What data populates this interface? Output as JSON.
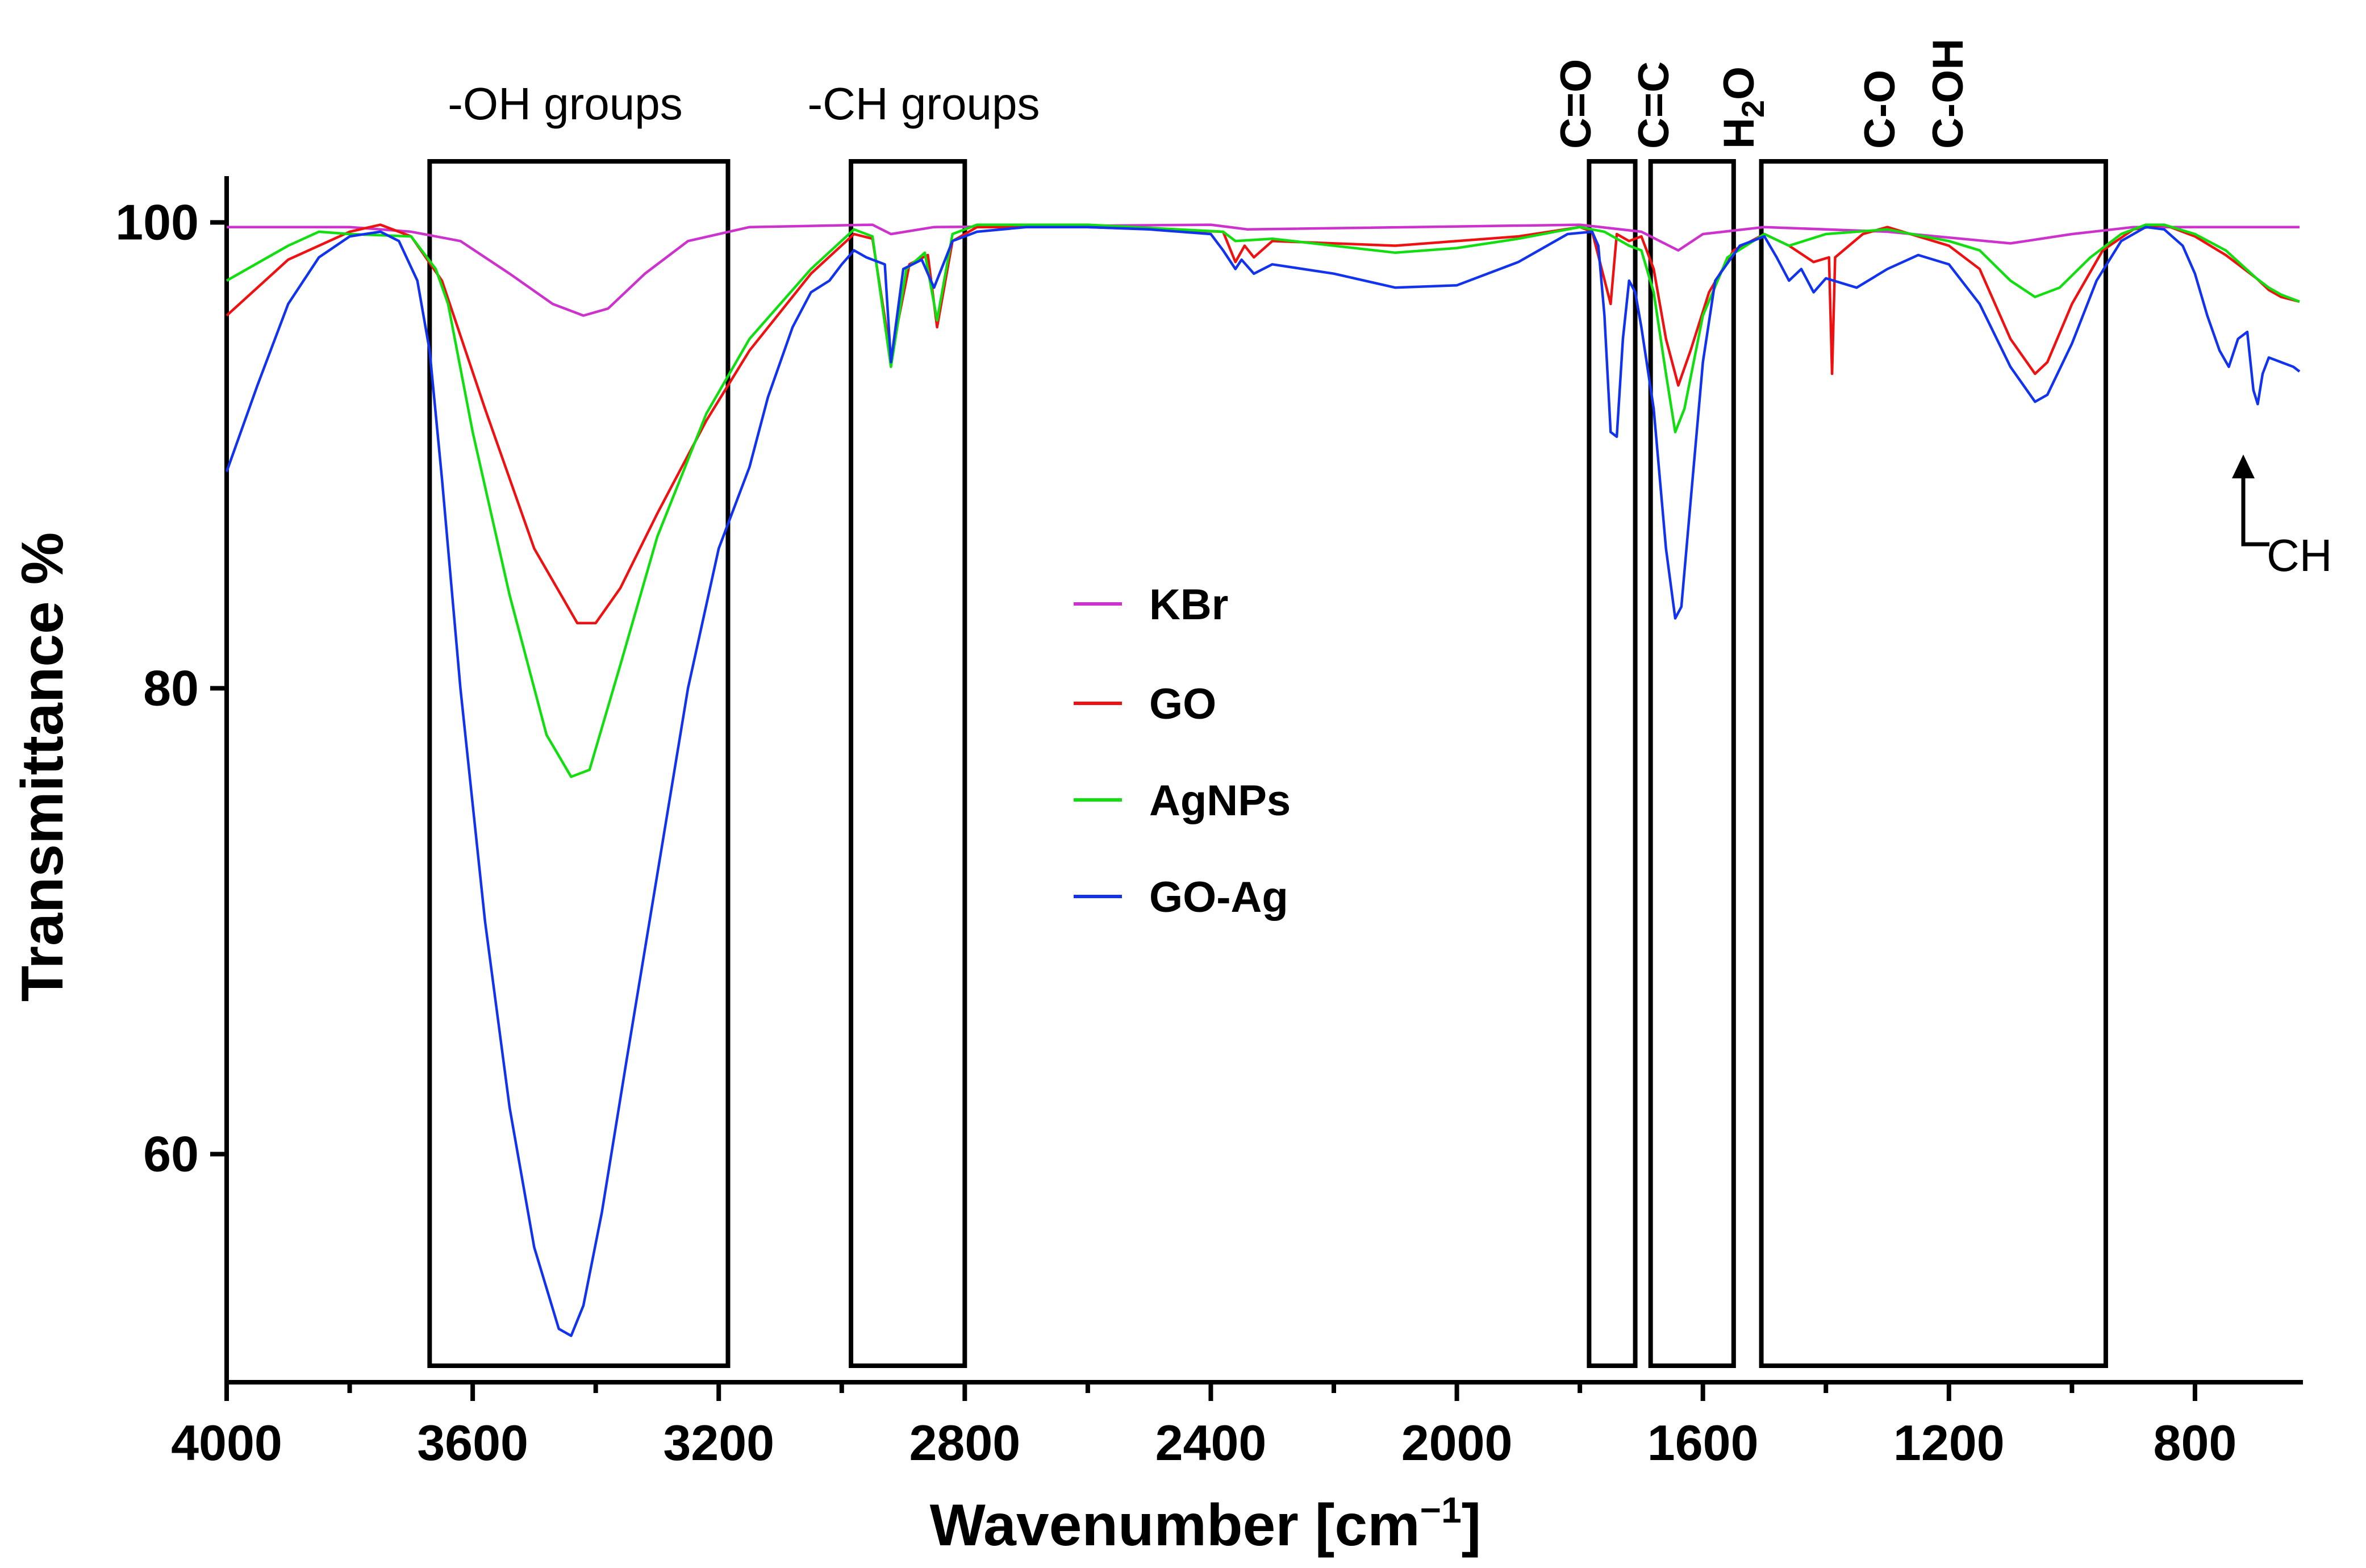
{
  "chart_data": {
    "type": "line",
    "title": "",
    "xlabel": "Wavenumber [cm",
    "xlabel_sup": "−1",
    "xlabel_close": "]",
    "ylabel": "Transmittance %",
    "xlim": [
      4000,
      630
    ],
    "ylim": [
      50,
      102
    ],
    "x_ticks": [
      4000,
      3600,
      3200,
      2800,
      2400,
      2000,
      1600,
      1200,
      800
    ],
    "x_minor_ticks": [
      3800,
      3400,
      3000,
      2600,
      2200,
      1800,
      1400,
      1000
    ],
    "y_ticks": [
      60,
      80,
      100
    ],
    "legend": [
      "KBr",
      "GO",
      "AgNPs",
      "GO-Ag"
    ],
    "series": [
      {
        "name": "KBr",
        "color": "#cc33cc",
        "points": [
          [
            4000,
            99.8
          ],
          [
            3800,
            99.8
          ],
          [
            3700,
            99.6
          ],
          [
            3620,
            99.2
          ],
          [
            3540,
            97.8
          ],
          [
            3470,
            96.5
          ],
          [
            3420,
            96.0
          ],
          [
            3380,
            96.3
          ],
          [
            3320,
            97.8
          ],
          [
            3250,
            99.2
          ],
          [
            3150,
            99.8
          ],
          [
            2950,
            99.9
          ],
          [
            2920,
            99.5
          ],
          [
            2850,
            99.8
          ],
          [
            2400,
            99.9
          ],
          [
            2340,
            99.7
          ],
          [
            1800,
            99.9
          ],
          [
            1700,
            99.6
          ],
          [
            1640,
            98.8
          ],
          [
            1600,
            99.5
          ],
          [
            1500,
            99.8
          ],
          [
            1300,
            99.6
          ],
          [
            1100,
            99.1
          ],
          [
            1000,
            99.5
          ],
          [
            900,
            99.8
          ],
          [
            630,
            99.8
          ]
        ]
      },
      {
        "name": "GO",
        "color": "#ee1111",
        "points": [
          [
            4000,
            96.0
          ],
          [
            3900,
            98.4
          ],
          [
            3800,
            99.6
          ],
          [
            3750,
            99.9
          ],
          [
            3700,
            99.4
          ],
          [
            3650,
            97.5
          ],
          [
            3580,
            92.0
          ],
          [
            3500,
            86.0
          ],
          [
            3430,
            82.8
          ],
          [
            3400,
            82.8
          ],
          [
            3360,
            84.3
          ],
          [
            3300,
            87.5
          ],
          [
            3220,
            91.5
          ],
          [
            3150,
            94.5
          ],
          [
            3050,
            97.8
          ],
          [
            2980,
            99.5
          ],
          [
            2950,
            99.3
          ],
          [
            2920,
            94.2
          ],
          [
            2890,
            98.2
          ],
          [
            2860,
            98.6
          ],
          [
            2845,
            95.5
          ],
          [
            2820,
            99.2
          ],
          [
            2780,
            99.8
          ],
          [
            2600,
            99.8
          ],
          [
            2380,
            99.6
          ],
          [
            2360,
            98.3
          ],
          [
            2345,
            99.0
          ],
          [
            2330,
            98.5
          ],
          [
            2300,
            99.2
          ],
          [
            2100,
            99.0
          ],
          [
            1900,
            99.4
          ],
          [
            1800,
            99.8
          ],
          [
            1780,
            99.6
          ],
          [
            1750,
            96.5
          ],
          [
            1740,
            99.5
          ],
          [
            1720,
            99.2
          ],
          [
            1700,
            99.4
          ],
          [
            1680,
            98.0
          ],
          [
            1660,
            95.0
          ],
          [
            1640,
            93.0
          ],
          [
            1620,
            94.5
          ],
          [
            1590,
            97.0
          ],
          [
            1550,
            98.8
          ],
          [
            1500,
            99.5
          ],
          [
            1460,
            99.0
          ],
          [
            1420,
            98.3
          ],
          [
            1395,
            98.5
          ],
          [
            1390,
            93.5
          ],
          [
            1385,
            98.5
          ],
          [
            1340,
            99.5
          ],
          [
            1300,
            99.8
          ],
          [
            1250,
            99.4
          ],
          [
            1200,
            99.0
          ],
          [
            1150,
            98.0
          ],
          [
            1100,
            95.0
          ],
          [
            1060,
            93.5
          ],
          [
            1040,
            94.0
          ],
          [
            1000,
            96.5
          ],
          [
            950,
            98.8
          ],
          [
            900,
            99.7
          ],
          [
            850,
            99.9
          ],
          [
            800,
            99.4
          ],
          [
            750,
            98.6
          ],
          [
            700,
            97.6
          ],
          [
            680,
            97.1
          ],
          [
            660,
            96.8
          ],
          [
            630,
            96.6
          ]
        ]
      },
      {
        "name": "AgNPs",
        "color": "#11dd11",
        "points": [
          [
            4000,
            97.5
          ],
          [
            3900,
            99.0
          ],
          [
            3850,
            99.6
          ],
          [
            3800,
            99.5
          ],
          [
            3700,
            99.4
          ],
          [
            3660,
            98.0
          ],
          [
            3640,
            96.5
          ],
          [
            3600,
            91.0
          ],
          [
            3540,
            84.0
          ],
          [
            3480,
            78.0
          ],
          [
            3440,
            76.2
          ],
          [
            3410,
            76.5
          ],
          [
            3360,
            81.0
          ],
          [
            3300,
            86.5
          ],
          [
            3220,
            91.8
          ],
          [
            3150,
            95.0
          ],
          [
            3050,
            98.0
          ],
          [
            2980,
            99.7
          ],
          [
            2950,
            99.4
          ],
          [
            2920,
            93.8
          ],
          [
            2895,
            98.0
          ],
          [
            2865,
            98.7
          ],
          [
            2845,
            95.8
          ],
          [
            2820,
            99.5
          ],
          [
            2780,
            99.9
          ],
          [
            2600,
            99.9
          ],
          [
            2380,
            99.6
          ],
          [
            2360,
            99.2
          ],
          [
            2300,
            99.3
          ],
          [
            2200,
            99.0
          ],
          [
            2100,
            98.7
          ],
          [
            2000,
            98.9
          ],
          [
            1900,
            99.3
          ],
          [
            1800,
            99.8
          ],
          [
            1760,
            99.6
          ],
          [
            1720,
            99.0
          ],
          [
            1700,
            98.8
          ],
          [
            1680,
            97.0
          ],
          [
            1660,
            93.5
          ],
          [
            1645,
            91.0
          ],
          [
            1630,
            92.0
          ],
          [
            1600,
            96.0
          ],
          [
            1560,
            98.5
          ],
          [
            1500,
            99.5
          ],
          [
            1460,
            99.0
          ],
          [
            1400,
            99.5
          ],
          [
            1300,
            99.7
          ],
          [
            1200,
            99.2
          ],
          [
            1150,
            98.8
          ],
          [
            1100,
            97.5
          ],
          [
            1060,
            96.8
          ],
          [
            1020,
            97.2
          ],
          [
            970,
            98.5
          ],
          [
            920,
            99.5
          ],
          [
            880,
            99.9
          ],
          [
            850,
            99.9
          ],
          [
            800,
            99.5
          ],
          [
            750,
            98.8
          ],
          [
            700,
            97.6
          ],
          [
            680,
            97.2
          ],
          [
            660,
            96.9
          ],
          [
            630,
            96.6
          ]
        ]
      },
      {
        "name": "GO-Ag",
        "color": "#1133ee",
        "points": [
          [
            4000,
            89.3
          ],
          [
            3950,
            93.0
          ],
          [
            3900,
            96.5
          ],
          [
            3850,
            98.5
          ],
          [
            3800,
            99.4
          ],
          [
            3750,
            99.6
          ],
          [
            3720,
            99.2
          ],
          [
            3690,
            97.5
          ],
          [
            3670,
            94.5
          ],
          [
            3650,
            89.0
          ],
          [
            3620,
            80.0
          ],
          [
            3580,
            70.0
          ],
          [
            3540,
            62.0
          ],
          [
            3500,
            56.0
          ],
          [
            3460,
            52.5
          ],
          [
            3440,
            52.2
          ],
          [
            3420,
            53.5
          ],
          [
            3390,
            57.5
          ],
          [
            3350,
            64.0
          ],
          [
            3300,
            72.0
          ],
          [
            3250,
            80.0
          ],
          [
            3200,
            86.0
          ],
          [
            3150,
            89.5
          ],
          [
            3120,
            92.5
          ],
          [
            3080,
            95.5
          ],
          [
            3050,
            97.0
          ],
          [
            3020,
            97.5
          ],
          [
            3000,
            98.2
          ],
          [
            2980,
            98.8
          ],
          [
            2960,
            98.5
          ],
          [
            2930,
            98.2
          ],
          [
            2920,
            94.0
          ],
          [
            2900,
            98.0
          ],
          [
            2870,
            98.4
          ],
          [
            2850,
            97.2
          ],
          [
            2820,
            99.2
          ],
          [
            2780,
            99.6
          ],
          [
            2700,
            99.8
          ],
          [
            2600,
            99.8
          ],
          [
            2500,
            99.7
          ],
          [
            2400,
            99.5
          ],
          [
            2380,
            98.8
          ],
          [
            2360,
            98.0
          ],
          [
            2350,
            98.4
          ],
          [
            2330,
            97.8
          ],
          [
            2300,
            98.2
          ],
          [
            2200,
            97.8
          ],
          [
            2100,
            97.2
          ],
          [
            2000,
            97.3
          ],
          [
            1900,
            98.3
          ],
          [
            1820,
            99.5
          ],
          [
            1780,
            99.6
          ],
          [
            1770,
            99.0
          ],
          [
            1760,
            96.0
          ],
          [
            1750,
            91.0
          ],
          [
            1740,
            90.8
          ],
          [
            1730,
            95.0
          ],
          [
            1720,
            97.5
          ],
          [
            1710,
            97.0
          ],
          [
            1700,
            95.5
          ],
          [
            1680,
            92.0
          ],
          [
            1660,
            86.0
          ],
          [
            1645,
            83.0
          ],
          [
            1635,
            83.5
          ],
          [
            1620,
            88.0
          ],
          [
            1600,
            94.0
          ],
          [
            1580,
            97.5
          ],
          [
            1540,
            99.0
          ],
          [
            1500,
            99.4
          ],
          [
            1480,
            98.5
          ],
          [
            1460,
            97.5
          ],
          [
            1440,
            98.0
          ],
          [
            1420,
            97.0
          ],
          [
            1400,
            97.6
          ],
          [
            1350,
            97.2
          ],
          [
            1300,
            98.0
          ],
          [
            1250,
            98.6
          ],
          [
            1200,
            98.2
          ],
          [
            1150,
            96.5
          ],
          [
            1100,
            93.8
          ],
          [
            1060,
            92.3
          ],
          [
            1040,
            92.6
          ],
          [
            1000,
            94.8
          ],
          [
            960,
            97.5
          ],
          [
            920,
            99.2
          ],
          [
            880,
            99.8
          ],
          [
            850,
            99.7
          ],
          [
            820,
            99.0
          ],
          [
            800,
            97.8
          ],
          [
            780,
            96.0
          ],
          [
            760,
            94.5
          ],
          [
            745,
            93.8
          ],
          [
            730,
            95.0
          ],
          [
            715,
            95.3
          ],
          [
            705,
            92.8
          ],
          [
            698,
            92.2
          ],
          [
            690,
            93.5
          ],
          [
            680,
            94.2
          ],
          [
            660,
            94.0
          ],
          [
            640,
            93.8
          ],
          [
            630,
            93.6
          ]
        ]
      }
    ],
    "region_boxes": [
      {
        "from": 3670,
        "to": 3185
      },
      {
        "from": 2985,
        "to": 2800
      },
      {
        "from": 1785,
        "to": 1710
      },
      {
        "from": 1685,
        "to": 1550
      },
      {
        "from": 1505,
        "to": 945
      }
    ],
    "annotations": {
      "oh_groups": "-OH groups",
      "ch_groups": "-CH groups",
      "c_o_double": "C=O",
      "c_c_double": "C=C",
      "h2o_h": "H",
      "h2o_sub": "2",
      "h2o_o": "O",
      "c_o": "C-O",
      "c_oh": "C-OH",
      "ch": "CH"
    }
  }
}
